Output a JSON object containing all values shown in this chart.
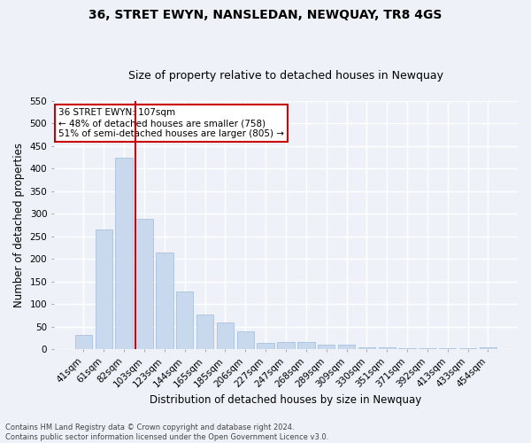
{
  "title": "36, STRET EWYN, NANSLEDAN, NEWQUAY, TR8 4GS",
  "subtitle": "Size of property relative to detached houses in Newquay",
  "xlabel": "Distribution of detached houses by size in Newquay",
  "ylabel": "Number of detached properties",
  "footnote1": "Contains HM Land Registry data © Crown copyright and database right 2024.",
  "footnote2": "Contains public sector information licensed under the Open Government Licence v3.0.",
  "categories": [
    "41sqm",
    "61sqm",
    "82sqm",
    "103sqm",
    "123sqm",
    "144sqm",
    "165sqm",
    "185sqm",
    "206sqm",
    "227sqm",
    "247sqm",
    "268sqm",
    "289sqm",
    "309sqm",
    "330sqm",
    "351sqm",
    "371sqm",
    "392sqm",
    "413sqm",
    "433sqm",
    "454sqm"
  ],
  "values": [
    32,
    265,
    425,
    290,
    215,
    128,
    77,
    60,
    40,
    15,
    17,
    17,
    10,
    10,
    5,
    4,
    3,
    2,
    2,
    2,
    5
  ],
  "bar_color": "#c8d9ee",
  "bar_edge_color": "#aac2de",
  "vline_color": "#cc0000",
  "annotation_text": "36 STRET EWYN: 107sqm\n← 48% of detached houses are smaller (758)\n51% of semi-detached houses are larger (805) →",
  "annotation_box_color": "#ffffff",
  "annotation_border_color": "#cc0000",
  "ylim": [
    0,
    550
  ],
  "yticks": [
    0,
    50,
    100,
    150,
    200,
    250,
    300,
    350,
    400,
    450,
    500,
    550
  ],
  "bg_color": "#eef2f8",
  "grid_color": "#ffffff",
  "title_fontsize": 10,
  "subtitle_fontsize": 9,
  "axis_label_fontsize": 8.5,
  "tick_fontsize": 7.5,
  "footnote_fontsize": 6.0
}
